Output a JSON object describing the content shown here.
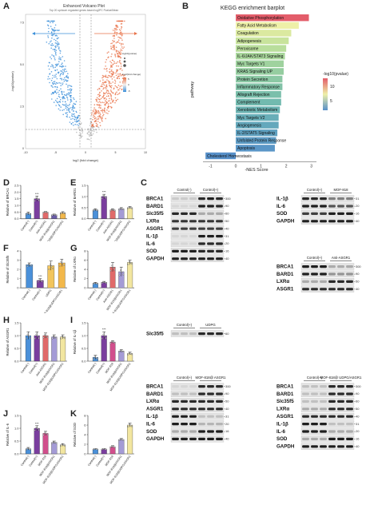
{
  "panels": {
    "A": {
      "label": "A",
      "title": "Enhanced Volcano Plot",
      "subtitle": "Top 20 up/down regulated genes based log2FC Pvalue/Mean",
      "xlabel": "log2 (fold change)",
      "ylabel": "-log10(pvalue)",
      "down_label": "Down",
      "up_label": "Up",
      "x_ticks": [
        "-10",
        "-5",
        "0",
        "5",
        "10"
      ],
      "y_ticks": [
        "0",
        "2.5",
        "5.0",
        "7.5"
      ],
      "legend_title_size": "log10(pvalue)",
      "legend_title_color": "log2(fold change)",
      "legend_color_ticks": [
        "5",
        "0",
        "-5"
      ]
    },
    "B": {
      "label": "B",
      "title": "KEGG enrichment barplot",
      "ylabel": "pathway",
      "xlabel": "-NES Score",
      "legend_title": "-log10(pvalue)",
      "legend_ticks": [
        "10",
        "5"
      ],
      "x_ticks": [
        "-1",
        "0",
        "1",
        "2",
        "3"
      ]
    },
    "C": {
      "label": "C"
    },
    "D": {
      "label": "D",
      "ylabel": "Relative of BRCA1"
    },
    "E": {
      "label": "E",
      "ylabel": "Relative of BARD1"
    },
    "F": {
      "label": "F",
      "ylabel": "Relative of Slc35f5"
    },
    "G": {
      "label": "G",
      "ylabel": "Relative of LXRα"
    },
    "H": {
      "label": "H",
      "ylabel": "Relative of ASGR1"
    },
    "I": {
      "label": "I",
      "ylabel": "Relative of IL-1β"
    },
    "J": {
      "label": "J",
      "ylabel": "Relative of IL-6"
    },
    "K": {
      "label": "K",
      "ylabel": "Relative of SOD"
    }
  },
  "group_labels": {
    "standard": [
      "Control(-)",
      "Control(+)",
      "Anti-ASGR1",
      "MOF-818@ASGR1",
      "MOF-818@UDPG/ASGR1"
    ],
    "udpg": [
      "Control(-)",
      "Control(+)",
      "UDPG",
      "MOF-818@UDPG/ASGR1"
    ],
    "mof": [
      "Control(-)",
      "Control(+)",
      "MOF-818",
      "MOF-818@ASGR1",
      "MOF-818@UDPG/ASGR1"
    ]
  },
  "blots": {
    "main": {
      "headers": [
        "Control(-)",
        "Control(+)"
      ],
      "proteins": [
        "BRCA1",
        "BARD1",
        "Slc35f5",
        "LXRα",
        "ASGR1",
        "IL-1β",
        "IL-6",
        "SOD",
        "GAPDH"
      ],
      "kda": [
        "300",
        "90",
        "60",
        "50",
        "40",
        "31",
        "20",
        "16",
        "40"
      ]
    },
    "mof818": {
      "headers": [
        "Control(+)",
        "MOF-818"
      ],
      "proteins": [
        "IL-1β",
        "IL-6",
        "SOD",
        "GAPDH"
      ],
      "kda": [
        "31",
        "20",
        "16",
        "40"
      ]
    },
    "anti": {
      "headers": [
        "Control(+)",
        "Anti-ASGR1"
      ],
      "proteins": [
        "BRCA1",
        "BARD1",
        "LXRα",
        "ASGR1"
      ],
      "kda": [
        "300",
        "90",
        "50",
        "40"
      ]
    },
    "udpg": {
      "headers": [
        "Control(+)",
        "UDPG"
      ],
      "proteins": [
        "Slc35f5"
      ],
      "kda": [
        "60"
      ]
    },
    "mofasgr1": {
      "headers": [
        "Control(+)",
        "MOF-818@ ASGR1"
      ],
      "proteins": [
        "BRCA1",
        "BARD1",
        "LXRα",
        "ASGR1",
        "IL-1β",
        "IL-6",
        "SOD",
        "GAPDH"
      ],
      "kda": [
        "300",
        "90",
        "50",
        "40",
        "31",
        "20",
        "16",
        "40"
      ]
    },
    "mofudpg": {
      "headers": [
        "Control(+)",
        "MOF-818@ UDPG/ASGR1"
      ],
      "proteins": [
        "BRCA1",
        "BARD1",
        "Slc35f5",
        "LXRα",
        "ASGR1",
        "IL-1β",
        "IL-6",
        "SOD",
        "GAPDH"
      ],
      "kda": [
        "300",
        "90",
        "60",
        "50",
        "40",
        "31",
        "20",
        "16",
        "40"
      ]
    }
  },
  "chart_data": [
    {
      "type": "scatter",
      "panel": "A",
      "title": "Enhanced Volcano Plot",
      "xlabel": "log2 (fold change)",
      "ylabel": "-log10(pvalue)",
      "xlim": [
        -10,
        10
      ],
      "ylim": [
        0,
        8
      ],
      "series": [
        {
          "name": "Down",
          "color": "#3b8fd9"
        },
        {
          "name": "Up",
          "color": "#e8734a"
        }
      ],
      "threshold_y": 1.3,
      "threshold_x": [
        -1,
        1
      ]
    },
    {
      "type": "bar",
      "panel": "B",
      "orientation": "horizontal",
      "title": "KEGG enrichment barplot",
      "xlabel": "-NES Score",
      "ylabel": "pathway",
      "xlim": [
        -1.3,
        3.2
      ],
      "categories": [
        "Oxidative Phosphorylation",
        "Fatty Acid Metabolism",
        "Coagulation",
        "Adipogenesis",
        "Peroxisome",
        "IL-6/JAK/STAT3 Signaling",
        "Myc Targets V1",
        "KRAS Signaling UP",
        "Protein Secretion",
        "Inflammatory Response",
        "Allograft Rejection",
        "Complement",
        "Xenobiotic Metabolism",
        "Myc Targets V2",
        "Angiogenesis",
        "IL-2/STAT5 Signaling",
        "Unfolded Protein Response",
        "Apoptosis",
        "Cholesterol Homeostasis"
      ],
      "values": [
        2.9,
        2.5,
        2.2,
        2.1,
        2.0,
        1.95,
        1.9,
        1.9,
        1.85,
        1.85,
        1.8,
        1.8,
        1.75,
        1.7,
        1.7,
        1.65,
        1.6,
        1.55,
        -1.2
      ],
      "colors": [
        "#e35d6a",
        "#eef0a8",
        "#dbe9a0",
        "#c8e39c",
        "#b9de9c",
        "#a9d79c",
        "#9fd29e",
        "#95cda0",
        "#8bc8a4",
        "#82c2a7",
        "#7abfab",
        "#72baaf",
        "#6db4b3",
        "#68aeb8",
        "#64a8bc",
        "#60a1c0",
        "#5d9bc4",
        "#5a96c7",
        "#5790c9"
      ],
      "legend_range": [
        3,
        12
      ]
    },
    {
      "type": "bar",
      "panel": "D",
      "ylabel": "Relative of BRCA1",
      "ylim": [
        0,
        2.5
      ],
      "y_ticks": [
        0,
        0.5,
        1.0,
        1.5,
        2.0,
        2.5
      ],
      "categories": [
        "Control(-)",
        "Control(+)",
        "Anti-ASGR1",
        "MOF-818@ASGR1",
        "MOF-818@UDPG/ASGR1"
      ],
      "values": [
        0.4,
        1.5,
        0.5,
        0.3,
        0.45
      ],
      "errors": [
        0.1,
        0.2,
        0.05,
        0.05,
        0.08
      ],
      "colors": [
        "#4a90d9",
        "#7a3e9e",
        "#e06a6a",
        "#6a5ca8",
        "#f2b84b"
      ],
      "annotations": [
        "",
        "***",
        "",
        "",
        ""
      ]
    },
    {
      "type": "bar",
      "panel": "E",
      "ylabel": "Relative of BARD1",
      "ylim": [
        0,
        1.5
      ],
      "y_ticks": [
        0,
        0.5,
        1.0,
        1.5
      ],
      "categories": [
        "Control(-)",
        "Control(+)",
        "Anti-ASGR1",
        "MOF-818@ASGR1",
        "MOF-818@UDPG/ASGR1"
      ],
      "values": [
        0.4,
        1.0,
        0.4,
        0.45,
        0.5
      ],
      "errors": [
        0.05,
        0.1,
        0.05,
        0.05,
        0.05
      ],
      "colors": [
        "#4a90d9",
        "#7a3e9e",
        "#e06a6a",
        "#a49bd6",
        "#f2e6a0"
      ],
      "annotations": [
        "",
        "***",
        "",
        "",
        ""
      ]
    },
    {
      "type": "bar",
      "panel": "F",
      "ylabel": "Relative of Slc35f5",
      "ylim": [
        0,
        4
      ],
      "y_ticks": [
        0,
        1,
        2,
        3,
        4
      ],
      "categories": [
        "Control(-)",
        "Control(+)",
        "UDPG",
        "MOF-818@UDPG/ASGR1"
      ],
      "values": [
        2.5,
        0.8,
        2.4,
        2.7
      ],
      "errors": [
        0.2,
        0.2,
        0.5,
        0.4
      ],
      "colors": [
        "#4a90d9",
        "#7a3e9e",
        "#f2c55c",
        "#f2b84b"
      ],
      "annotations": [
        "",
        "***",
        "",
        ""
      ]
    },
    {
      "type": "bar",
      "panel": "G",
      "ylabel": "Relative of LXRα",
      "ylim": [
        0,
        8
      ],
      "y_ticks": [
        0,
        2,
        4,
        6,
        8
      ],
      "categories": [
        "Control(-)",
        "Control(+)",
        "Anti-ASGR1",
        "MOF-818@ASGR1",
        "MOF-818@UDPG/ASGR1"
      ],
      "values": [
        1.0,
        1.2,
        4.5,
        3.5,
        5.5
      ],
      "errors": [
        0.2,
        0.2,
        1.0,
        1.0,
        0.5
      ],
      "colors": [
        "#4a90d9",
        "#7a3e9e",
        "#e06a6a",
        "#a49bd6",
        "#f2e6a0"
      ],
      "annotations": [
        "",
        "",
        "",
        "",
        ""
      ]
    },
    {
      "type": "bar",
      "panel": "H",
      "ylabel": "Relative of ASGR1",
      "ylim": [
        0,
        1.5
      ],
      "y_ticks": [
        0,
        0.5,
        1.0,
        1.5
      ],
      "categories": [
        "Control(-)",
        "Control(+)",
        "Anti-ASGR1",
        "MOF-818@ASGR1",
        "MOF-818@UDPG/ASGR1"
      ],
      "values": [
        1.0,
        1.0,
        1.0,
        0.95,
        0.95
      ],
      "errors": [
        0.15,
        0.15,
        0.1,
        0.08,
        0.08
      ],
      "colors": [
        "#4a90d9",
        "#7a3e9e",
        "#e06a6a",
        "#a49bd6",
        "#f2e6a0"
      ],
      "annotations": [
        "",
        "",
        "",
        "",
        ""
      ]
    },
    {
      "type": "bar",
      "panel": "I",
      "ylabel": "Relative of IL-1β",
      "ylim": [
        0,
        1.5
      ],
      "y_ticks": [
        0,
        0.5,
        1.0,
        1.5
      ],
      "categories": [
        "Control(-)",
        "Control(+)",
        "MOF-818",
        "MOF-818@ASGR1",
        "MOF-818@UDPG/ASGR1"
      ],
      "values": [
        0.15,
        1.0,
        0.75,
        0.4,
        0.3
      ],
      "errors": [
        0.08,
        0.15,
        0.05,
        0.05,
        0.05
      ],
      "colors": [
        "#4a90d9",
        "#7a3e9e",
        "#d14f8c",
        "#a49bd6",
        "#f2e6a0"
      ],
      "annotations": [
        "",
        "***",
        "",
        "",
        ""
      ]
    },
    {
      "type": "bar",
      "panel": "J",
      "ylabel": "Relative of IL-6",
      "ylim": [
        0,
        1.5
      ],
      "y_ticks": [
        0,
        0.5,
        1.0,
        1.5
      ],
      "categories": [
        "Control(-)",
        "Control(+)",
        "MOF-818",
        "MOF-818@ASGR1",
        "MOF-818@UDPG/ASGR1"
      ],
      "values": [
        0.2,
        1.0,
        0.8,
        0.45,
        0.35
      ],
      "errors": [
        0.05,
        0.1,
        0.08,
        0.05,
        0.05
      ],
      "colors": [
        "#4a90d9",
        "#7a3e9e",
        "#d14f8c",
        "#a49bd6",
        "#f2e6a0"
      ],
      "annotations": [
        "",
        "***",
        "",
        "",
        ""
      ]
    },
    {
      "type": "bar",
      "panel": "K",
      "ylabel": "Relative of SOD",
      "ylim": [
        0,
        8
      ],
      "y_ticks": [
        0,
        2,
        4,
        6,
        8
      ],
      "categories": [
        "Control(-)",
        "Control(+)",
        "MOF-818",
        "MOF-818@ASGR1",
        "MOF-818@UDPG/ASGR1"
      ],
      "values": [
        1.0,
        1.0,
        1.5,
        3.0,
        6.0
      ],
      "errors": [
        0.1,
        0.1,
        0.2,
        0.2,
        0.4
      ],
      "colors": [
        "#4a90d9",
        "#7a3e9e",
        "#d14f8c",
        "#a49bd6",
        "#f2e6a0"
      ],
      "annotations": [
        "",
        "",
        "",
        "",
        ""
      ]
    }
  ]
}
